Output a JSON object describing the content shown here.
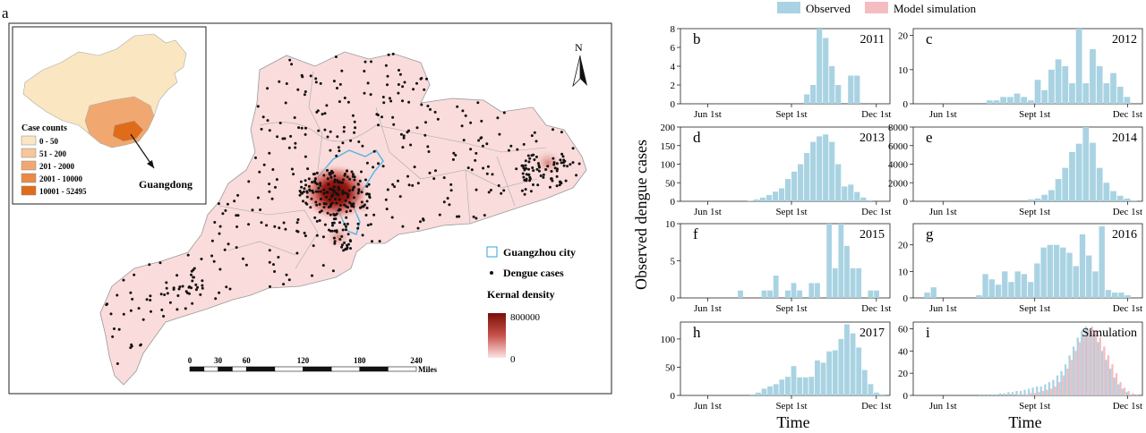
{
  "figure": {
    "panel_a_label": "a",
    "north_label": "N",
    "inset_label": "Guangdong",
    "inset_legend_title": "Case counts",
    "inset_legend": [
      {
        "label": "0 - 50",
        "color": "#fbe6c2"
      },
      {
        "label": "51 - 200",
        "color": "#f6c79a"
      },
      {
        "label": "201 - 2000",
        "color": "#f0a870"
      },
      {
        "label": "2001 - 10000",
        "color": "#ea8a46"
      },
      {
        "label": "10001 - 52495",
        "color": "#e06c1a"
      }
    ],
    "map_legend": {
      "guangzhou": "Guangzhou city",
      "dengue": "Dengue cases",
      "kernel_title": "Kernal density",
      "kernel_max": "800000",
      "kernel_min": "0"
    },
    "scalebar": {
      "ticks": [
        "0",
        "30",
        "60",
        "120",
        "180",
        "240"
      ],
      "unit": "Miles"
    },
    "histogram_legend": [
      {
        "label": "Observed",
        "color": "#a9d3e2"
      },
      {
        "label": "Model simulation",
        "color": "#f5bcc1"
      }
    ],
    "y_axis_title": "Observed dengue cases",
    "x_axis_title": "Time",
    "x_ticks": [
      "Jun 1st",
      "Sept 1st",
      "Dec 1st"
    ]
  },
  "colors": {
    "observed": "#a9d3e2",
    "simulation": "#f5bcc1",
    "map_fill": "#fadcdc",
    "guangzhou_outline": "#4fb4e6"
  },
  "chart_data": [
    {
      "type": "bar",
      "panel": "b",
      "title": "2011",
      "xlabel": "",
      "ylabel": "Observed dengue cases",
      "yticks": [
        0,
        2,
        4,
        6,
        8
      ],
      "ylim": [
        0,
        8
      ],
      "x_ticks": [
        "Jun 1st",
        "Sept 1st",
        "Dec 1st"
      ],
      "series": [
        {
          "name": "Observed",
          "values": [
            0,
            0,
            0,
            0,
            0,
            0,
            0,
            0,
            0,
            0,
            0,
            0,
            0,
            0,
            0,
            0,
            0,
            0,
            0,
            1,
            2,
            8,
            7,
            4,
            2,
            0,
            3,
            3,
            0,
            0,
            0,
            0
          ]
        }
      ]
    },
    {
      "type": "bar",
      "panel": "c",
      "title": "2012",
      "xlabel": "",
      "ylabel": "Observed dengue cases",
      "yticks": [
        0,
        10,
        20
      ],
      "ylim": [
        0,
        22
      ],
      "x_ticks": [
        "Jun 1st",
        "Sept 1st",
        "Dec 1st"
      ],
      "series": [
        {
          "name": "Observed",
          "values": [
            0,
            0,
            0,
            0,
            0,
            0,
            0,
            0,
            0,
            0,
            1,
            1,
            2,
            2,
            3,
            2,
            1,
            7,
            4,
            10,
            13,
            11,
            6,
            22,
            6,
            16,
            11,
            6,
            9,
            5,
            2,
            0
          ]
        }
      ]
    },
    {
      "type": "bar",
      "panel": "d",
      "title": "2013",
      "xlabel": "",
      "ylabel": "Observed dengue cases",
      "yticks": [
        0,
        50,
        100,
        150,
        200
      ],
      "ylim": [
        0,
        200
      ],
      "x_ticks": [
        "Jun 1st",
        "Sept 1st",
        "Dec 1st"
      ],
      "series": [
        {
          "name": "Observed",
          "values": [
            0,
            0,
            0,
            0,
            0,
            0,
            0,
            0,
            0,
            0,
            2,
            5,
            10,
            17,
            26,
            35,
            60,
            80,
            100,
            130,
            160,
            175,
            180,
            160,
            100,
            40,
            45,
            25,
            10,
            3,
            0,
            0
          ]
        }
      ]
    },
    {
      "type": "bar",
      "panel": "e",
      "title": "2014",
      "xlabel": "",
      "ylabel": "Observed dengue cases",
      "yticks": [
        0,
        2000,
        4000,
        6000,
        8000
      ],
      "ylim": [
        0,
        8000
      ],
      "x_ticks": [
        "Jun 1st",
        "Sept 1st",
        "Dec 1st"
      ],
      "series": [
        {
          "name": "Observed",
          "values": [
            0,
            0,
            0,
            0,
            0,
            0,
            0,
            0,
            0,
            0,
            0,
            0,
            0,
            0,
            0,
            0,
            200,
            300,
            700,
            1200,
            2400,
            3600,
            5300,
            6200,
            8000,
            6300,
            3600,
            2000,
            1100,
            600,
            300,
            100
          ]
        }
      ]
    },
    {
      "type": "bar",
      "panel": "f",
      "title": "2015",
      "xlabel": "",
      "ylabel": "Observed dengue cases",
      "yticks": [
        0,
        5,
        10
      ],
      "ylim": [
        0,
        10
      ],
      "x_ticks": [
        "Jun 1st",
        "Sept 1st",
        "Dec 1st"
      ],
      "series": [
        {
          "name": "Observed",
          "values": [
            0,
            0,
            0,
            0,
            0,
            0,
            0,
            0,
            0,
            1,
            0,
            0,
            0,
            1,
            1,
            3,
            0,
            1,
            2,
            1,
            0,
            2,
            2,
            0,
            10,
            4,
            10,
            7,
            4,
            4,
            0,
            1,
            1,
            0
          ]
        }
      ]
    },
    {
      "type": "bar",
      "panel": "g",
      "title": "2016",
      "xlabel": "",
      "ylabel": "Observed dengue cases",
      "yticks": [
        0,
        10,
        20
      ],
      "ylim": [
        0,
        28
      ],
      "x_ticks": [
        "Jun 1st",
        "Sept 1st",
        "Dec 1st"
      ],
      "series": [
        {
          "name": "Observed",
          "values": [
            0,
            2,
            4,
            0,
            0,
            0,
            0,
            0,
            0,
            1,
            9,
            7,
            5,
            10,
            6,
            10,
            9,
            6,
            13,
            19,
            20,
            20,
            19,
            17,
            12,
            24,
            16,
            10,
            27,
            3,
            2,
            2,
            1,
            0
          ]
        }
      ]
    },
    {
      "type": "bar",
      "panel": "h",
      "title": "2017",
      "xlabel": "Time",
      "ylabel": "Observed dengue cases",
      "yticks": [
        0,
        50,
        100
      ],
      "ylim": [
        0,
        130
      ],
      "x_ticks": [
        "Jun 1st",
        "Sept 1st",
        "Dec 1st"
      ],
      "series": [
        {
          "name": "Observed",
          "values": [
            0,
            0,
            0,
            0,
            0,
            0,
            0,
            0,
            0,
            0,
            0,
            2,
            5,
            12,
            16,
            20,
            28,
            33,
            52,
            32,
            32,
            33,
            62,
            58,
            78,
            80,
            100,
            126,
            110,
            85,
            45,
            20,
            5,
            2
          ]
        }
      ]
    },
    {
      "type": "bar",
      "panel": "i",
      "title": "Simulation",
      "xlabel": "Time",
      "ylabel": "Observed dengue cases",
      "yticks": [
        0,
        20,
        40,
        60
      ],
      "ylim": [
        0,
        66
      ],
      "x_ticks": [
        "Jun 1st",
        "Sept 1st",
        "Dec 1st"
      ],
      "series": [
        {
          "name": "Observed",
          "values": [
            0,
            0,
            0,
            0,
            0,
            0,
            0,
            0,
            0,
            0,
            0,
            0,
            0,
            0,
            0,
            1,
            1,
            1,
            1,
            1,
            2,
            2,
            3,
            3,
            4,
            4,
            5,
            6,
            7,
            8,
            8,
            10,
            12,
            14,
            18,
            22,
            28,
            36,
            44,
            52,
            58,
            62,
            60,
            55,
            48,
            40,
            32,
            24,
            16,
            10,
            6,
            3,
            1,
            0
          ]
        },
        {
          "name": "Model simulation",
          "values": [
            0,
            0,
            0,
            0,
            0,
            0,
            0,
            0,
            0,
            0,
            0,
            0,
            0,
            0,
            0,
            0,
            0,
            0,
            0,
            0,
            0,
            0,
            0,
            0,
            1,
            1,
            1,
            2,
            2,
            3,
            4,
            5,
            6,
            8,
            12,
            18,
            24,
            32,
            40,
            48,
            55,
            60,
            62,
            58,
            52,
            44,
            36,
            28,
            20,
            12,
            7,
            4,
            2,
            1
          ]
        }
      ]
    }
  ]
}
